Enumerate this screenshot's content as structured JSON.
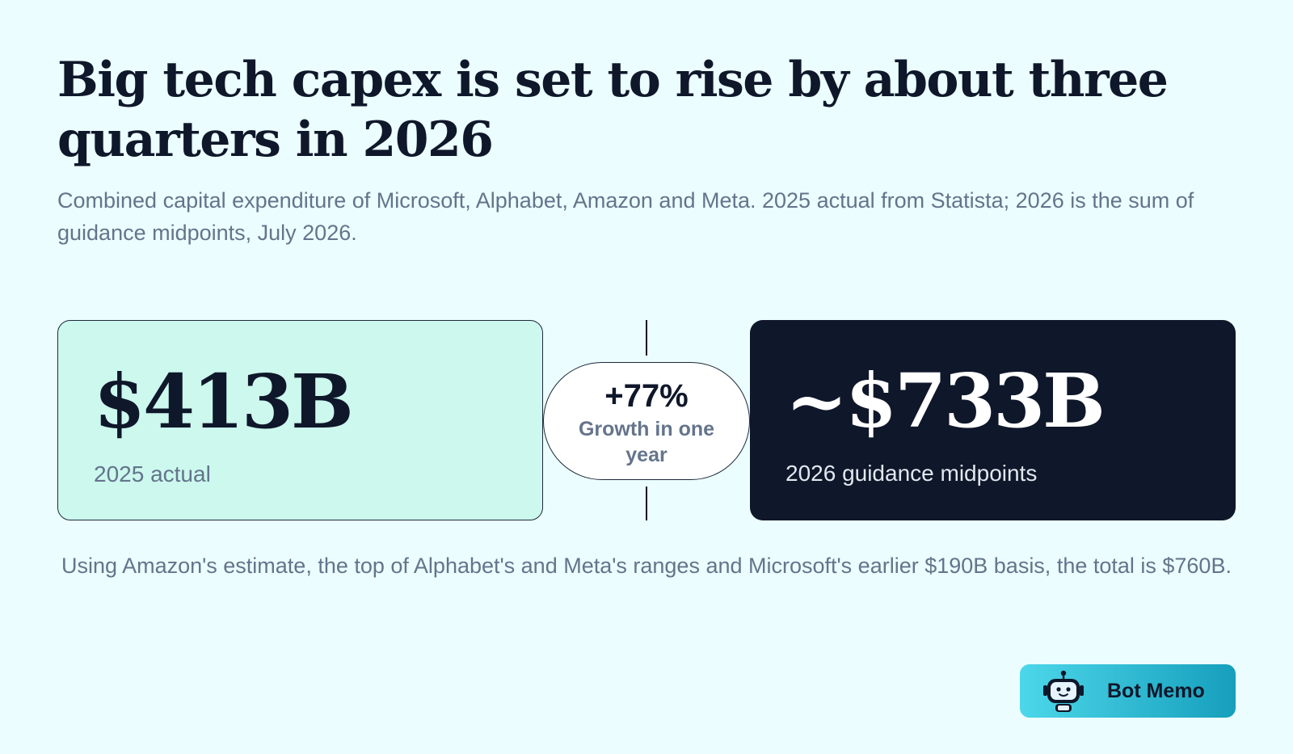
{
  "header": {
    "title": "Big tech capex is set to rise by about three quarters in 2026",
    "subtitle": "Combined capital expenditure of Microsoft, Alphabet, Amazon and Meta. 2025 actual from Statista; 2026 is the sum of guidance midpoints, July 2026."
  },
  "comparison": {
    "left": {
      "value": "$413B",
      "label": "2025 actual"
    },
    "center": {
      "value": "+77%",
      "label": "Growth in one year"
    },
    "right": {
      "value": "~$733B",
      "label": "2026 guidance midpoints"
    }
  },
  "footnote": "Using Amazon's estimate, the top of Alphabet's and Meta's ranges and Microsoft's earlier $190B basis, the total is $760B.",
  "brand": {
    "name": "Bot Memo",
    "icon": "robot-icon"
  },
  "colors": {
    "background": "#ebfdfe",
    "left_card": "#ccf8ee",
    "right_card": "#0f172a",
    "brand_gradient_start": "#4dd7ea",
    "brand_gradient_end": "#169fbc"
  }
}
